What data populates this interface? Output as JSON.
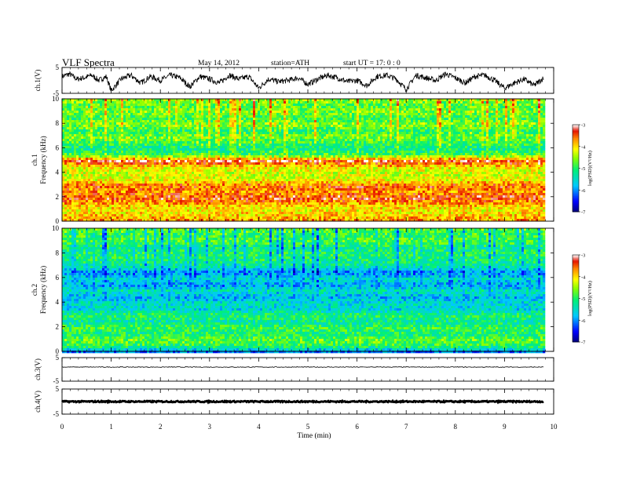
{
  "header": {
    "title": "VLF  Spectra",
    "date": "May 14, 2012",
    "station": "station=ATH",
    "start_ut": "start  UT  =    17: 0  : 0"
  },
  "chart_data": [
    {
      "type": "line",
      "panel": "ch1-waveform",
      "ylabel": "ch.1(V)",
      "ylim": [
        -5,
        5
      ],
      "yticks": [
        "5",
        "-5"
      ],
      "xlim": [
        0,
        10
      ],
      "x_unit": "min",
      "data_end_min": 9.8,
      "series": [
        {
          "x": [
            0,
            0.15,
            0.3,
            0.45,
            0.6,
            0.75,
            0.9,
            1.0,
            1.2,
            1.4,
            1.6,
            1.8,
            2.0,
            2.2,
            2.4,
            2.6,
            2.8,
            3.0,
            3.2,
            3.4,
            3.6,
            3.8,
            4.0,
            4.2,
            4.4,
            4.6,
            4.8,
            5.0,
            5.2,
            5.4,
            5.6,
            5.8,
            6.0,
            6.2,
            6.4,
            6.6,
            6.8,
            7.0,
            7.2,
            7.4,
            7.6,
            7.8,
            8.0,
            8.2,
            8.4,
            8.6,
            8.8,
            9.0,
            9.2,
            9.4,
            9.6,
            9.8
          ],
          "values": [
            1.5,
            2.5,
            0.5,
            1.0,
            2.0,
            0.0,
            1.5,
            -4.0,
            0.5,
            2.0,
            -1.0,
            1.5,
            0.0,
            2.0,
            1.0,
            -2.5,
            1.5,
            0.5,
            -1.0,
            2.0,
            0.5,
            1.5,
            -3.0,
            0.5,
            -0.5,
            0.0,
            1.0,
            -1.5,
            0.5,
            2.0,
            1.0,
            -0.5,
            0.0,
            -2.0,
            1.5,
            2.0,
            0.5,
            -3.5,
            2.0,
            1.0,
            0.0,
            2.5,
            1.0,
            -1.0,
            1.5,
            2.0,
            0.0,
            -3.0,
            -1.0,
            0.5,
            -2.0,
            1.0
          ]
        }
      ]
    },
    {
      "type": "heatmap",
      "panel": "ch1-spectrogram",
      "ylabel": "Frequency (kHz)",
      "channel_label": "ch.1",
      "ylim": [
        0,
        10
      ],
      "yticks": [
        "0",
        "2",
        "4",
        "6",
        "8",
        "10"
      ],
      "xlim": [
        0,
        10
      ],
      "data_end_min": 9.8,
      "colorbar": {
        "label": "log(PSD)(V²/Hz)",
        "range": [
          -7,
          -3
        ],
        "ticks": [
          "-3",
          "-4",
          "-5",
          "-6",
          "-7"
        ]
      },
      "level_by_freq_khz": [
        [
          0,
          -3.6
        ],
        [
          0.5,
          -3.9
        ],
        [
          1,
          -4.1
        ],
        [
          1.5,
          -3.8
        ],
        [
          2,
          -3.4
        ],
        [
          2.5,
          -3.7
        ],
        [
          3,
          -3.5
        ],
        [
          3.5,
          -4.2
        ],
        [
          4,
          -4.3
        ],
        [
          4.5,
          -4.1
        ],
        [
          5,
          -3.3
        ],
        [
          5.5,
          -4.8
        ],
        [
          6,
          -5.2
        ],
        [
          6.5,
          -4.9
        ],
        [
          7,
          -4.6
        ],
        [
          7.5,
          -5.0
        ],
        [
          8,
          -4.5
        ],
        [
          8.5,
          -4.9
        ],
        [
          9,
          -4.6
        ],
        [
          9.5,
          -4.8
        ],
        [
          10,
          -4.5
        ]
      ]
    },
    {
      "type": "heatmap",
      "panel": "ch2-spectrogram",
      "ylabel": "Frequency (kHz)",
      "channel_label": "ch.2",
      "ylim": [
        0,
        10
      ],
      "yticks": [
        "0",
        "2",
        "4",
        "6",
        "8",
        "10"
      ],
      "xlim": [
        0,
        10
      ],
      "data_end_min": 9.8,
      "colorbar": {
        "label": "log(PSD)(V²/Hz)",
        "range": [
          -7,
          -3
        ],
        "ticks": [
          "-3",
          "-4",
          "-5",
          "-6",
          "-7"
        ]
      },
      "level_by_freq_khz": [
        [
          0,
          -6.2
        ],
        [
          0.5,
          -5.0
        ],
        [
          1,
          -4.7
        ],
        [
          1.5,
          -5.1
        ],
        [
          2,
          -4.9
        ],
        [
          2.5,
          -5.3
        ],
        [
          3,
          -5.0
        ],
        [
          3.5,
          -5.6
        ],
        [
          4,
          -5.5
        ],
        [
          4.5,
          -5.8
        ],
        [
          5,
          -5.4
        ],
        [
          5.5,
          -5.9
        ],
        [
          6,
          -5.5
        ],
        [
          6.5,
          -6.0
        ],
        [
          7,
          -5.3
        ],
        [
          7.5,
          -5.1
        ],
        [
          8,
          -5.0
        ],
        [
          8.5,
          -5.2
        ],
        [
          9,
          -4.8
        ],
        [
          9.5,
          -4.9
        ],
        [
          10,
          -4.7
        ]
      ]
    },
    {
      "type": "line",
      "panel": "ch3-waveform",
      "ylabel": "ch.3(V)",
      "ylim": [
        -5,
        5
      ],
      "yticks": [
        "5",
        "-5"
      ],
      "xlim": [
        0,
        10
      ],
      "data_end_min": 9.8,
      "series": [
        {
          "x": [
            0,
            9.8
          ],
          "values": [
            1.0,
            1.0
          ]
        }
      ]
    },
    {
      "type": "line",
      "panel": "ch4-waveform",
      "ylabel": "ch.4(V)",
      "ylim": [
        -5,
        5
      ],
      "yticks": [
        "5",
        "-5"
      ],
      "xlim": [
        0,
        10
      ],
      "xlabel": "Time  (min)",
      "xticks": [
        "0",
        "1",
        "2",
        "3",
        "4",
        "5",
        "6",
        "7",
        "8",
        "9",
        "10"
      ],
      "data_end_min": 9.8,
      "series": [
        {
          "x": [
            0,
            9.8
          ],
          "values": [
            0.0,
            0.0
          ]
        }
      ]
    }
  ]
}
